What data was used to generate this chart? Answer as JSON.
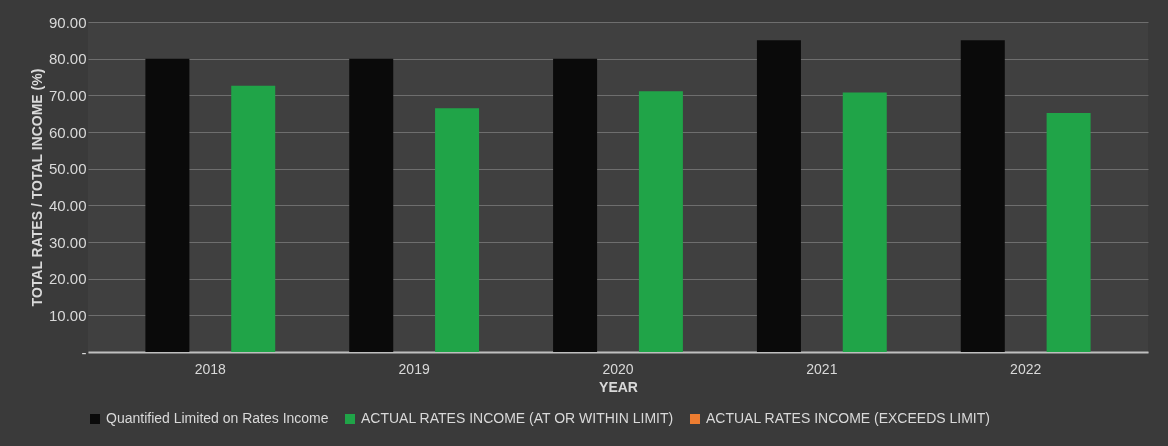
{
  "chart_data": {
    "type": "bar",
    "xlabel": "YEAR",
    "ylabel": "TOTAL RATES / TOTAL INCOME (%)",
    "categories": [
      "2018",
      "2019",
      "2020",
      "2021",
      "2022"
    ],
    "series": [
      {
        "name": "Quantified Limited on Rates Income",
        "color": "#0a0a0a",
        "values": [
          80,
          80,
          80,
          85,
          85
        ]
      },
      {
        "name": "ACTUAL RATES INCOME (AT OR WITHIN LIMIT)",
        "color": "#20a448",
        "values": [
          72.6,
          66.5,
          71.1,
          70.8,
          65.2
        ]
      },
      {
        "name": "ACTUAL RATES INCOME (EXCEEDS LIMIT)",
        "color": "#ed7d31",
        "values": [
          null,
          null,
          null,
          null,
          null
        ]
      }
    ],
    "ylim": [
      0,
      90
    ],
    "yticks": [
      {
        "value": 0,
        "label": "-"
      },
      {
        "value": 10,
        "label": "10.00"
      },
      {
        "value": 20,
        "label": "20.00"
      },
      {
        "value": 30,
        "label": "30.00"
      },
      {
        "value": 40,
        "label": "40.00"
      },
      {
        "value": 50,
        "label": "50.00"
      },
      {
        "value": 60,
        "label": "60.00"
      },
      {
        "value": 70,
        "label": "70.00"
      },
      {
        "value": 80,
        "label": "80.00"
      },
      {
        "value": 90,
        "label": "90.00"
      }
    ],
    "grid": "y",
    "legend": "bottom"
  }
}
